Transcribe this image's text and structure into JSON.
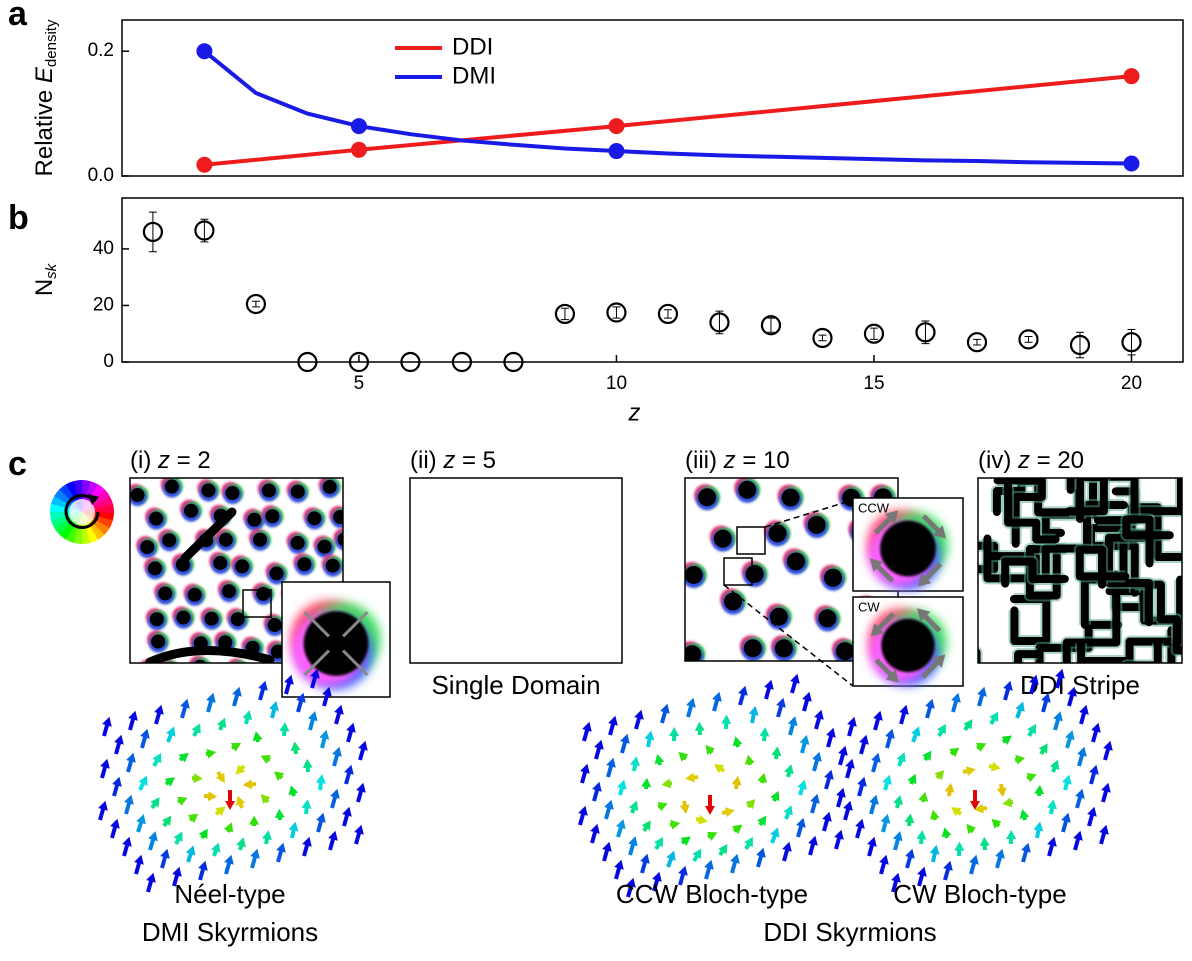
{
  "panel_labels": [
    "a",
    "b",
    "c"
  ],
  "chart_data": [
    {
      "type": "line",
      "ylabel": [
        "Relative ",
        "E",
        "density"
      ],
      "xlim": [
        0.4,
        21
      ],
      "ylim": [
        0,
        0.25
      ],
      "yticks": [
        {
          "value": 0,
          "label": "0.0"
        },
        {
          "value": 0.2,
          "label": "0.2"
        }
      ],
      "legend": "upper center",
      "series": [
        {
          "name": "DDI",
          "color": "#ee1c1c",
          "x": [
            2,
            5,
            10,
            20
          ],
          "values": [
            0.018,
            0.042,
            0.08,
            0.16
          ],
          "marker_x": [
            2,
            5,
            10,
            20
          ]
        },
        {
          "name": "DMI",
          "color": "#1a1ae6",
          "x": [
            2,
            3,
            4,
            5,
            6,
            7,
            8,
            9,
            10,
            11,
            12,
            13,
            14,
            15,
            16,
            17,
            18,
            19,
            20
          ],
          "values": [
            0.2,
            0.133,
            0.1,
            0.08,
            0.067,
            0.057,
            0.05,
            0.044,
            0.04,
            0.036,
            0.033,
            0.031,
            0.029,
            0.027,
            0.025,
            0.024,
            0.022,
            0.021,
            0.02
          ],
          "marker_x": [
            2,
            5,
            10,
            20
          ]
        }
      ]
    },
    {
      "type": "scatter",
      "ylabel": [
        "N",
        "sk"
      ],
      "xlabel": "z",
      "xlim": [
        0.4,
        21
      ],
      "ylim": [
        0,
        58
      ],
      "xticks": [
        5,
        10,
        15,
        20
      ],
      "yticks": [
        0,
        20,
        40
      ],
      "color": "#000000",
      "x": [
        1,
        2,
        3,
        4,
        5,
        6,
        7,
        8,
        9,
        10,
        11,
        12,
        13,
        14,
        15,
        16,
        17,
        18,
        19,
        20
      ],
      "values": [
        46,
        46.5,
        20.5,
        0,
        0,
        0,
        0,
        0,
        17,
        17.5,
        17,
        14,
        13,
        8.5,
        10,
        10.5,
        7,
        8,
        6,
        7
      ],
      "errors": [
        7,
        4,
        1,
        0,
        0,
        0,
        0,
        0,
        2,
        2,
        1.5,
        4,
        2.5,
        1,
        2,
        4,
        1,
        1,
        4.5,
        4.5
      ]
    }
  ],
  "images": [
    {
      "label": [
        "(i) ",
        "z",
        " = 2"
      ]
    },
    {
      "label": [
        "(ii) ",
        "z",
        " = 5"
      ],
      "caption": "Single Domain"
    },
    {
      "label": [
        "(iii) ",
        "z",
        " = 10"
      ],
      "insets": [
        "CCW",
        "CW"
      ]
    },
    {
      "label": [
        "(iv) ",
        "z",
        " = 20"
      ],
      "caption": "DDI Stripe"
    }
  ],
  "skyrmions": {
    "neel": "Néel-type",
    "dmi": "DMI Skyrmions",
    "ccw": "CCW Bloch-type",
    "cw": "CW Bloch-type",
    "ddi": "DDI Skyrmions"
  }
}
